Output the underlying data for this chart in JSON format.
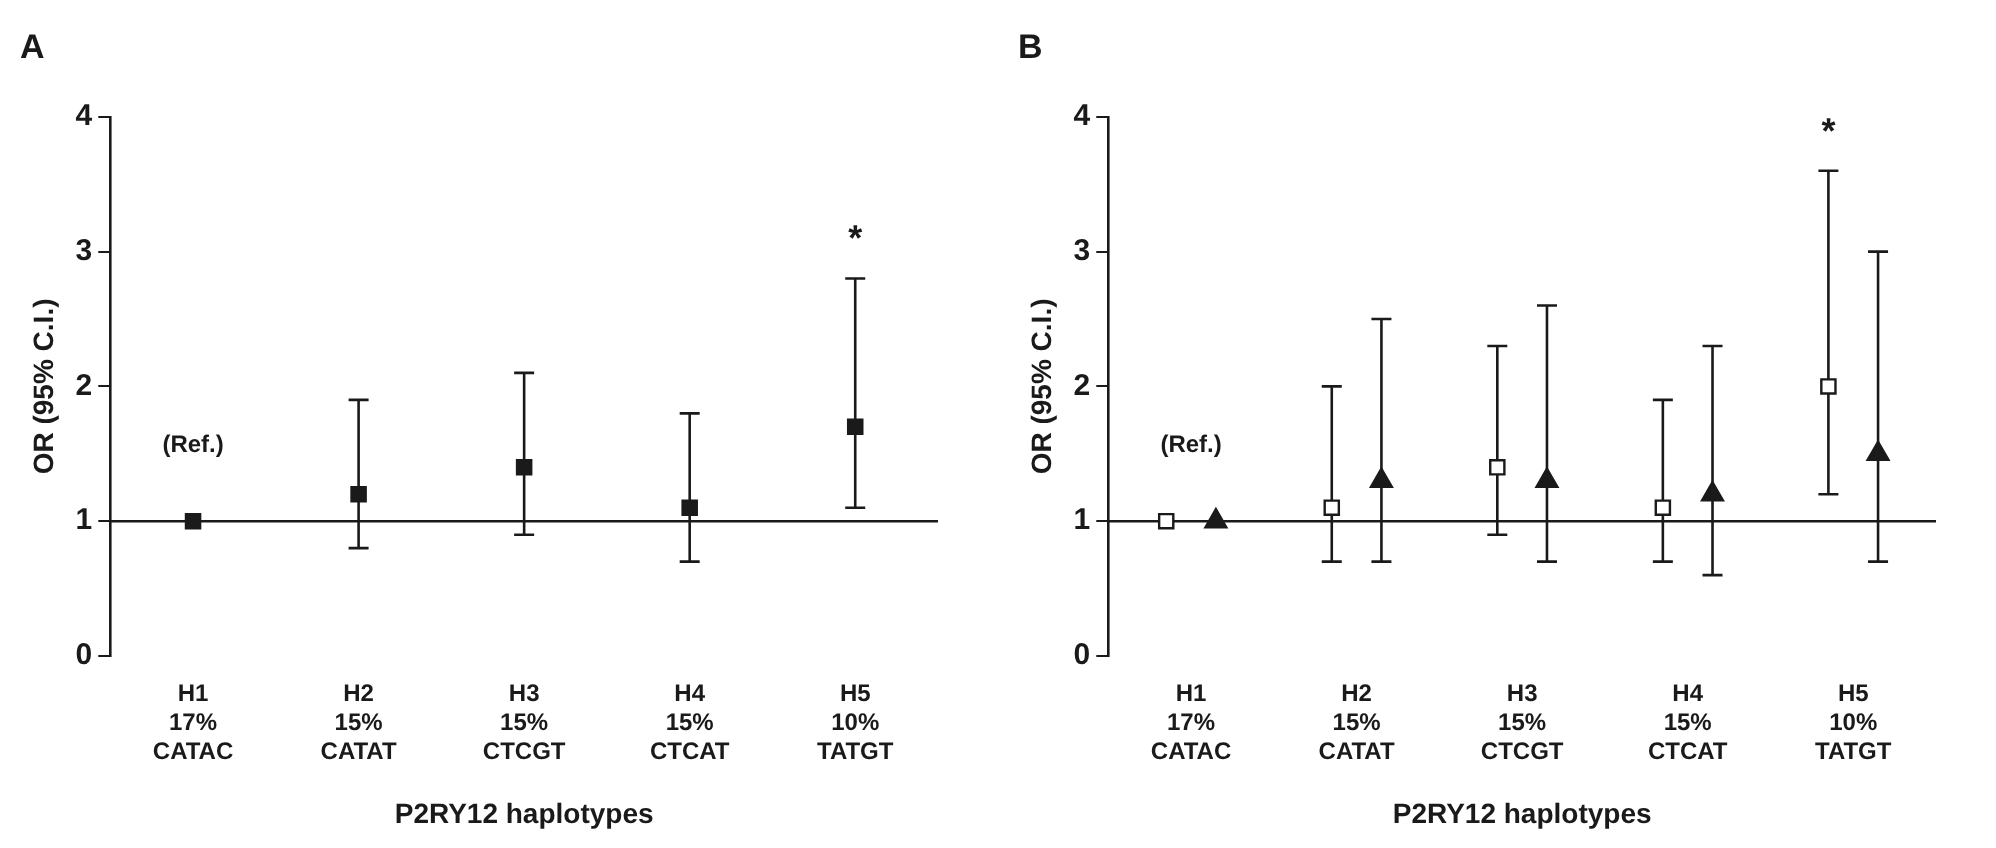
{
  "chart_data": [
    {
      "type": "scatter",
      "title": "A",
      "xlabel": "P2RY12 haplotypes",
      "ylabel": "OR (95% C.I.)",
      "categories": [
        "H1\n17%\nCATAC",
        "H2\n15%\nCATAT",
        "H3\n15%\nCTCGT",
        "H4\n15%\nCTCAT",
        "H5\n10%\nTATGT"
      ],
      "series": [
        {
          "color": "#1a1a1a",
          "marker": "square",
          "values": [
            1.0,
            1.2,
            1.4,
            1.1,
            1.7
          ],
          "errors": [
            null,
            [
              0.8,
              1.9
            ],
            [
              0.9,
              2.1
            ],
            [
              0.7,
              1.8
            ],
            [
              1.1,
              2.8
            ]
          ]
        }
      ],
      "ylim": [
        0,
        4
      ],
      "yticks": [
        0,
        1,
        2,
        3,
        4
      ],
      "grid": false,
      "legend": false,
      "ref_lines": [
        {
          "axis": "y",
          "value": 1
        }
      ],
      "annotations": [
        {
          "text": "(Ref.)",
          "x": "H1\n17%\nCATAC",
          "y": 1.0
        },
        "*"
      ]
    },
    {
      "type": "scatter",
      "title": "B",
      "xlabel": "P2RY12 haplotypes",
      "ylabel": "OR (95% C.I.)",
      "categories": [
        "H1\n17%\nCATAC",
        "H2\n15%\nCATAT",
        "H3\n15%\nCTCGT",
        "H4\n15%\nCTCAT",
        "H5\n10%\nTATGT"
      ],
      "series": [
        {
          "color": "#ffffff",
          "marker": "square",
          "values": [
            1.0,
            1.1,
            1.4,
            1.1,
            2.0
          ],
          "errors": [
            null,
            [
              0.7,
              2.0
            ],
            [
              0.9,
              2.3
            ],
            [
              0.7,
              1.9
            ],
            [
              1.2,
              3.6
            ]
          ]
        },
        {
          "color": "#1a1a1a",
          "marker": "triangle",
          "values": [
            1.0,
            1.3,
            1.3,
            1.2,
            1.5
          ],
          "errors": [
            null,
            [
              0.7,
              2.5
            ],
            [
              0.7,
              2.6
            ],
            [
              0.6,
              2.3
            ],
            [
              0.7,
              3.0
            ]
          ]
        }
      ],
      "ylim": [
        0,
        4
      ],
      "yticks": [
        0,
        1,
        2,
        3,
        4
      ],
      "grid": false,
      "legend": false,
      "ref_lines": [
        {
          "axis": "y",
          "value": 1
        }
      ],
      "annotations": [
        {
          "text": "(Ref.)",
          "x": "H1\n17%\nCATAC",
          "y": 1.0
        },
        "*"
      ]
    }
  ]
}
